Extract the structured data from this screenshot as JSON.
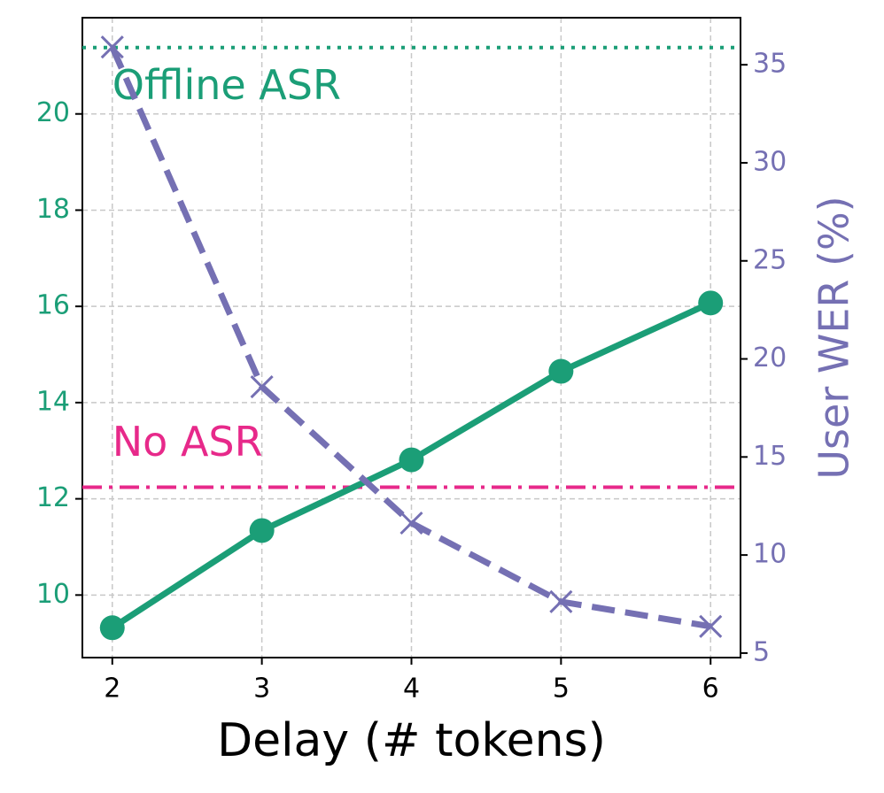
{
  "chart_data": {
    "type": "line",
    "x": [
      2,
      3,
      4,
      5,
      6
    ],
    "xlim": [
      1.8,
      6.2
    ],
    "xticks": [
      2,
      3,
      4,
      5,
      6
    ],
    "ylim": [
      8.7,
      22
    ],
    "yticks": [
      10,
      12,
      14,
      16,
      18,
      20
    ],
    "y2lim": [
      4.77,
      37.4
    ],
    "y2ticks": [
      5,
      10,
      15,
      20,
      25,
      30,
      35
    ],
    "xlabel": "Delay (# tokens)",
    "y2label": "User WER (%)",
    "grid": true,
    "series": [
      {
        "color": "#1b9e77",
        "linestyle": "solid",
        "marker": "circle",
        "values": [
          9.32,
          11.34,
          12.81,
          14.65,
          16.07
        ]
      },
      {
        "color": "#7570b3",
        "linestyle": "dashed",
        "marker": "x",
        "axis": "y2",
        "values": [
          35.9,
          18.58,
          11.63,
          7.62,
          6.36
        ]
      }
    ],
    "reference_lines": [
      {
        "label": "Offline ASR",
        "value": 21.38,
        "color": "#1b9e77",
        "linestyle": "dotted"
      },
      {
        "label": "No ASR",
        "value": 12.24,
        "color": "#e7298a",
        "linestyle": "dashdot"
      }
    ]
  }
}
